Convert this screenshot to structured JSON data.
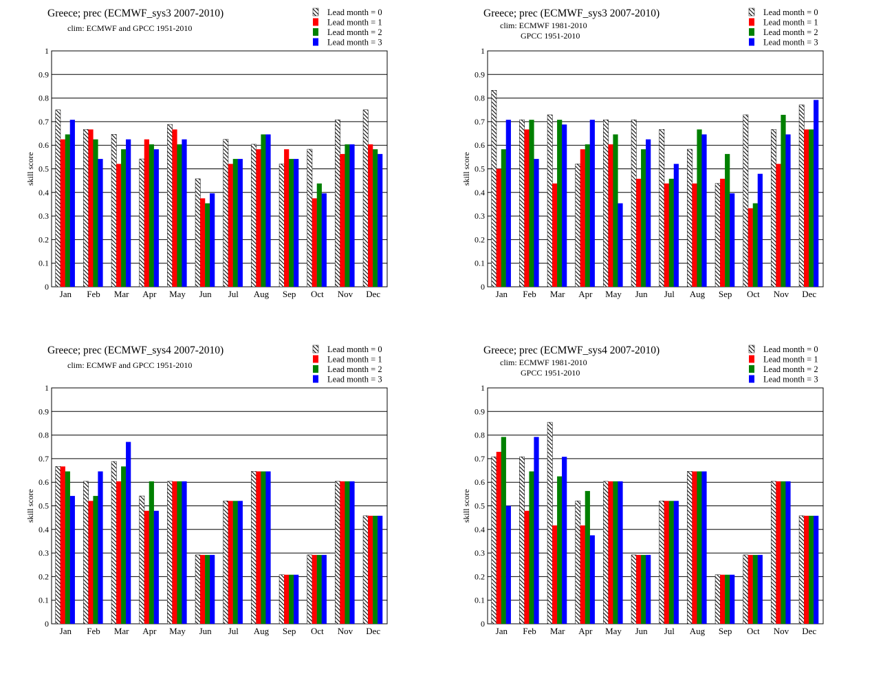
{
  "chart_data": [
    {
      "type": "bar",
      "title": "Greece; prec (ECMWF_sys3 2007-2010)",
      "subtitle": [
        "clim: ECMWF and GPCC 1951-2010"
      ],
      "xlabel": "",
      "ylabel": "skill score",
      "ylim": [
        0,
        1
      ],
      "yticks": [
        "0",
        "0.1",
        "0.2",
        "0.3",
        "0.4",
        "0.5",
        "0.6",
        "0.7",
        "0.8",
        "0.9",
        "1"
      ],
      "grid": "horizontal",
      "legend_position": "top-right",
      "categories": [
        "Jan",
        "Feb",
        "Mar",
        "Apr",
        "May",
        "Jun",
        "Jul",
        "Aug",
        "Sep",
        "Oct",
        "Nov",
        "Dec"
      ],
      "series": [
        {
          "name": "Lead month = 0",
          "color": "hatched",
          "values": [
            0.75,
            0.667,
            0.646,
            0.542,
            0.688,
            0.458,
            0.625,
            0.604,
            0.521,
            0.583,
            0.708,
            0.75
          ]
        },
        {
          "name": "Lead month = 1",
          "color": "#ff0000",
          "values": [
            0.625,
            0.667,
            0.521,
            0.625,
            0.667,
            0.375,
            0.521,
            0.583,
            0.583,
            0.375,
            0.563,
            0.604
          ]
        },
        {
          "name": "Lead month = 2",
          "color": "#008000",
          "values": [
            0.646,
            0.625,
            0.583,
            0.604,
            0.604,
            0.354,
            0.542,
            0.646,
            0.542,
            0.438,
            0.604,
            0.583
          ]
        },
        {
          "name": "Lead month = 3",
          "color": "#0000ff",
          "values": [
            0.708,
            0.542,
            0.625,
            0.583,
            0.625,
            0.396,
            0.542,
            0.646,
            0.542,
            0.396,
            0.604,
            0.563
          ]
        }
      ]
    },
    {
      "type": "bar",
      "title": "Greece; prec (ECMWF_sys3 2007-2010)",
      "subtitle": [
        "clim: ECMWF 1981-2010",
        "GPCC 1951-2010"
      ],
      "xlabel": "",
      "ylabel": "skill score",
      "ylim": [
        0,
        1
      ],
      "yticks": [
        "0",
        "0.1",
        "0.2",
        "0.3",
        "0.4",
        "0.5",
        "0.6",
        "0.7",
        "0.8",
        "0.9",
        "1"
      ],
      "grid": "horizontal",
      "legend_position": "top-right",
      "categories": [
        "Jan",
        "Feb",
        "Mar",
        "Apr",
        "May",
        "Jun",
        "Jul",
        "Aug",
        "Sep",
        "Oct",
        "Nov",
        "Dec"
      ],
      "series": [
        {
          "name": "Lead month = 0",
          "color": "hatched",
          "values": [
            0.833,
            0.708,
            0.729,
            0.521,
            0.708,
            0.708,
            0.667,
            0.583,
            0.438,
            0.729,
            0.667,
            0.771
          ]
        },
        {
          "name": "Lead month = 1",
          "color": "#ff0000",
          "values": [
            0.5,
            0.667,
            0.438,
            0.583,
            0.604,
            0.458,
            0.438,
            0.438,
            0.458,
            0.333,
            0.521,
            0.667
          ]
        },
        {
          "name": "Lead month = 2",
          "color": "#008000",
          "values": [
            0.583,
            0.708,
            0.708,
            0.604,
            0.646,
            0.583,
            0.458,
            0.667,
            0.563,
            0.354,
            0.729,
            0.667
          ]
        },
        {
          "name": "Lead month = 3",
          "color": "#0000ff",
          "values": [
            0.708,
            0.542,
            0.688,
            0.708,
            0.354,
            0.625,
            0.521,
            0.646,
            0.396,
            0.479,
            0.646,
            0.792
          ]
        }
      ]
    },
    {
      "type": "bar",
      "title": "Greece; prec (ECMWF_sys4 2007-2010)",
      "subtitle": [
        "clim: ECMWF and GPCC 1951-2010"
      ],
      "xlabel": "",
      "ylabel": "skill score",
      "ylim": [
        0,
        1
      ],
      "yticks": [
        "0",
        "0.1",
        "0.2",
        "0.3",
        "0.4",
        "0.5",
        "0.6",
        "0.7",
        "0.8",
        "0.9",
        "1"
      ],
      "grid": "horizontal",
      "legend_position": "top-right",
      "categories": [
        "Jan",
        "Feb",
        "Mar",
        "Apr",
        "May",
        "Jun",
        "Jul",
        "Aug",
        "Sep",
        "Oct",
        "Nov",
        "Dec"
      ],
      "series": [
        {
          "name": "Lead month = 0",
          "color": "hatched",
          "values": [
            0.667,
            0.604,
            0.688,
            0.542,
            0.604,
            0.292,
            0.521,
            0.646,
            0.208,
            0.292,
            0.604,
            0.458
          ]
        },
        {
          "name": "Lead month = 1",
          "color": "#ff0000",
          "values": [
            0.667,
            0.521,
            0.604,
            0.479,
            0.604,
            0.292,
            0.521,
            0.646,
            0.208,
            0.292,
            0.604,
            0.458
          ]
        },
        {
          "name": "Lead month = 2",
          "color": "#008000",
          "values": [
            0.646,
            0.542,
            0.667,
            0.604,
            0.604,
            0.292,
            0.521,
            0.646,
            0.208,
            0.292,
            0.604,
            0.458
          ]
        },
        {
          "name": "Lead month = 3",
          "color": "#0000ff",
          "values": [
            0.542,
            0.646,
            0.771,
            0.479,
            0.604,
            0.292,
            0.521,
            0.646,
            0.208,
            0.292,
            0.604,
            0.458
          ]
        }
      ]
    },
    {
      "type": "bar",
      "title": "Greece; prec (ECMWF_sys4 2007-2010)",
      "subtitle": [
        "clim: ECMWF 1981-2010",
        "GPCC 1951-2010"
      ],
      "xlabel": "",
      "ylabel": "skill score",
      "ylim": [
        0,
        1
      ],
      "yticks": [
        "0",
        "0.1",
        "0.2",
        "0.3",
        "0.4",
        "0.5",
        "0.6",
        "0.7",
        "0.8",
        "0.9",
        "1"
      ],
      "grid": "horizontal",
      "legend_position": "top-right",
      "categories": [
        "Jan",
        "Feb",
        "Mar",
        "Apr",
        "May",
        "Jun",
        "Jul",
        "Aug",
        "Sep",
        "Oct",
        "Nov",
        "Dec"
      ],
      "series": [
        {
          "name": "Lead month = 0",
          "color": "hatched",
          "values": [
            0.708,
            0.708,
            0.854,
            0.521,
            0.604,
            0.292,
            0.521,
            0.646,
            0.208,
            0.292,
            0.604,
            0.458
          ]
        },
        {
          "name": "Lead month = 1",
          "color": "#ff0000",
          "values": [
            0.729,
            0.479,
            0.417,
            0.417,
            0.604,
            0.292,
            0.521,
            0.646,
            0.208,
            0.292,
            0.604,
            0.458
          ]
        },
        {
          "name": "Lead month = 2",
          "color": "#008000",
          "values": [
            0.792,
            0.646,
            0.625,
            0.563,
            0.604,
            0.292,
            0.521,
            0.646,
            0.208,
            0.292,
            0.604,
            0.458
          ]
        },
        {
          "name": "Lead month = 3",
          "color": "#0000ff",
          "values": [
            0.5,
            0.792,
            0.708,
            0.375,
            0.604,
            0.292,
            0.521,
            0.646,
            0.208,
            0.292,
            0.604,
            0.458
          ]
        }
      ]
    }
  ]
}
